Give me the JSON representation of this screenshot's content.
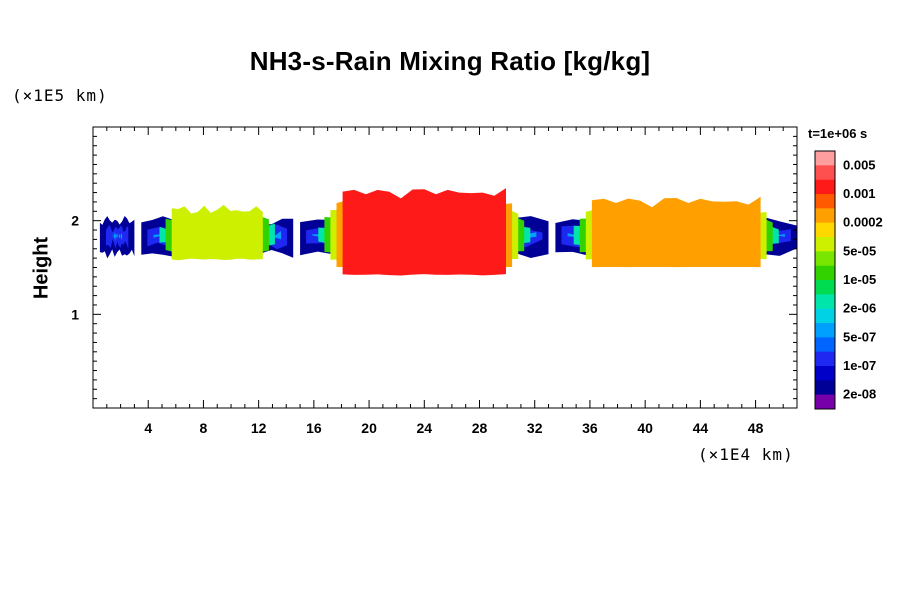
{
  "chart_data": {
    "type": "heatmap",
    "title": "NH3-s-Rain Mixing Ratio [kg/kg]",
    "xlabel": "",
    "ylabel": "Height",
    "x_unit_label": "(×1E4 km)",
    "y_unit_label": "(×1E5 km)",
    "time_label": "t=1e+06 s",
    "xlim": [
      0,
      51
    ],
    "ylim": [
      0,
      3
    ],
    "x_ticks": [
      4,
      8,
      12,
      16,
      20,
      24,
      28,
      32,
      36,
      40,
      44,
      48
    ],
    "y_ticks": [
      1,
      2
    ],
    "colorbar": {
      "labels": [
        "0.005",
        "0.001",
        "0.0002",
        "5e-05",
        "1e-05",
        "2e-06",
        "5e-07",
        "1e-07",
        "2e-08"
      ],
      "colors": [
        "#ff9e9e",
        "#ff5050",
        "#ff1a1a",
        "#ff5a00",
        "#ffa000",
        "#ffd800",
        "#ccf000",
        "#78e600",
        "#32d200",
        "#00dc50",
        "#00e6aa",
        "#00d2e6",
        "#00a0ff",
        "#0064ff",
        "#1e28f0",
        "#0000c8",
        "#000096",
        "#7800aa"
      ]
    },
    "field": {
      "description": "cloud layer between heights ~1.65 and ~2.0 (×1E5 km)",
      "layer_base": 1.65,
      "layer_top": 2.0,
      "segments": [
        {
          "x": [
            0.5,
            3
          ],
          "level": 12
        },
        {
          "x": [
            3.5,
            14.5
          ],
          "level": 6
        },
        {
          "x": [
            15,
            33
          ],
          "level": 2
        },
        {
          "x": [
            33.5,
            51
          ],
          "level": 4
        }
      ]
    }
  }
}
